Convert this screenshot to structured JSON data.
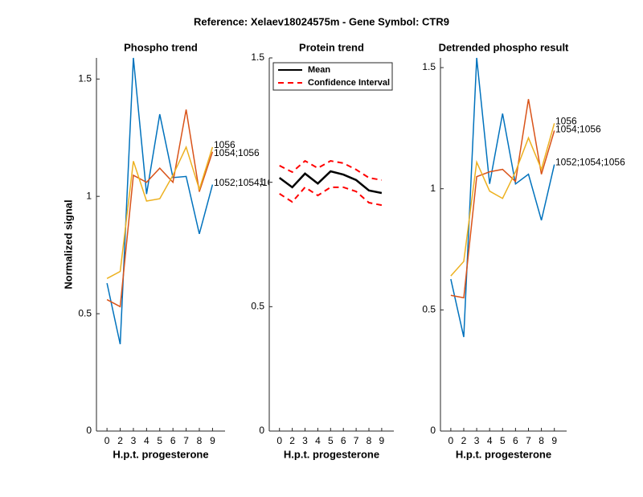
{
  "title": "Reference:  Xelaev18024575m - Gene Symbol:  CTR9",
  "chart_data": [
    {
      "type": "line",
      "title": "Phospho trend",
      "xlabel": "H.p.t. progesterone",
      "ylabel": "Normalized signal",
      "categories": [
        "0",
        "2",
        "3",
        "4",
        "5",
        "6",
        "7",
        "8",
        "9"
      ],
      "ylim": [
        0,
        1.59
      ],
      "yticks": [
        0,
        0.5,
        1,
        1.5
      ],
      "end_labels": true,
      "series": [
        {
          "name": "1052;1054;1056",
          "color": "#0072bd",
          "values": [
            0.63,
            0.37,
            1.59,
            1.01,
            1.35,
            1.08,
            1.085,
            0.84,
            1.05
          ]
        },
        {
          "name": "1054;1056",
          "color": "#d95319",
          "values": [
            0.56,
            0.53,
            1.09,
            1.06,
            1.12,
            1.06,
            1.37,
            1.02,
            1.19
          ]
        },
        {
          "name": "1056",
          "color": "#edb120",
          "values": [
            0.65,
            0.68,
            1.15,
            0.98,
            0.99,
            1.09,
            1.21,
            1.03,
            1.21
          ]
        }
      ]
    },
    {
      "type": "line",
      "title": "Protein trend",
      "xlabel": "H.p.t. progesterone",
      "categories": [
        "0",
        "2",
        "3",
        "4",
        "5",
        "6",
        "7",
        "8",
        "9"
      ],
      "ylim": [
        0,
        1.5
      ],
      "yticks": [
        0,
        0.5,
        1,
        1.5
      ],
      "legend": "northwest",
      "series": [
        {
          "name": "Mean",
          "color": "#000000",
          "values": [
            1.018,
            0.98,
            1.035,
            0.995,
            1.044,
            1.031,
            1.009,
            0.967,
            0.957
          ]
        },
        {
          "name": "Confidence Interval",
          "color": "#ff0000",
          "dashed": true,
          "upper": [
            1.067,
            1.041,
            1.086,
            1.057,
            1.086,
            1.077,
            1.051,
            1.018,
            1.009
          ],
          "lower": [
            0.954,
            0.921,
            0.98,
            0.947,
            0.98,
            0.98,
            0.963,
            0.918,
            0.908
          ]
        }
      ]
    },
    {
      "type": "line",
      "title": "Detrended phospho result",
      "xlabel": "H.p.t. progesterone",
      "categories": [
        "0",
        "2",
        "3",
        "4",
        "5",
        "6",
        "7",
        "8",
        "9"
      ],
      "ylim": [
        0,
        1.54
      ],
      "yticks": [
        0,
        0.5,
        1,
        1.5
      ],
      "end_labels": true,
      "series": [
        {
          "name": "1052;1054;1056",
          "color": "#0072bd",
          "values": [
            0.627,
            0.388,
            1.54,
            1.02,
            1.31,
            1.02,
            1.06,
            0.87,
            1.1
          ]
        },
        {
          "name": "1054;1056",
          "color": "#d95319",
          "values": [
            0.56,
            0.55,
            1.05,
            1.07,
            1.08,
            1.03,
            1.37,
            1.06,
            1.24
          ]
        },
        {
          "name": "1056",
          "color": "#edb120",
          "values": [
            0.64,
            0.7,
            1.11,
            0.99,
            0.96,
            1.07,
            1.21,
            1.08,
            1.27
          ]
        }
      ]
    }
  ]
}
